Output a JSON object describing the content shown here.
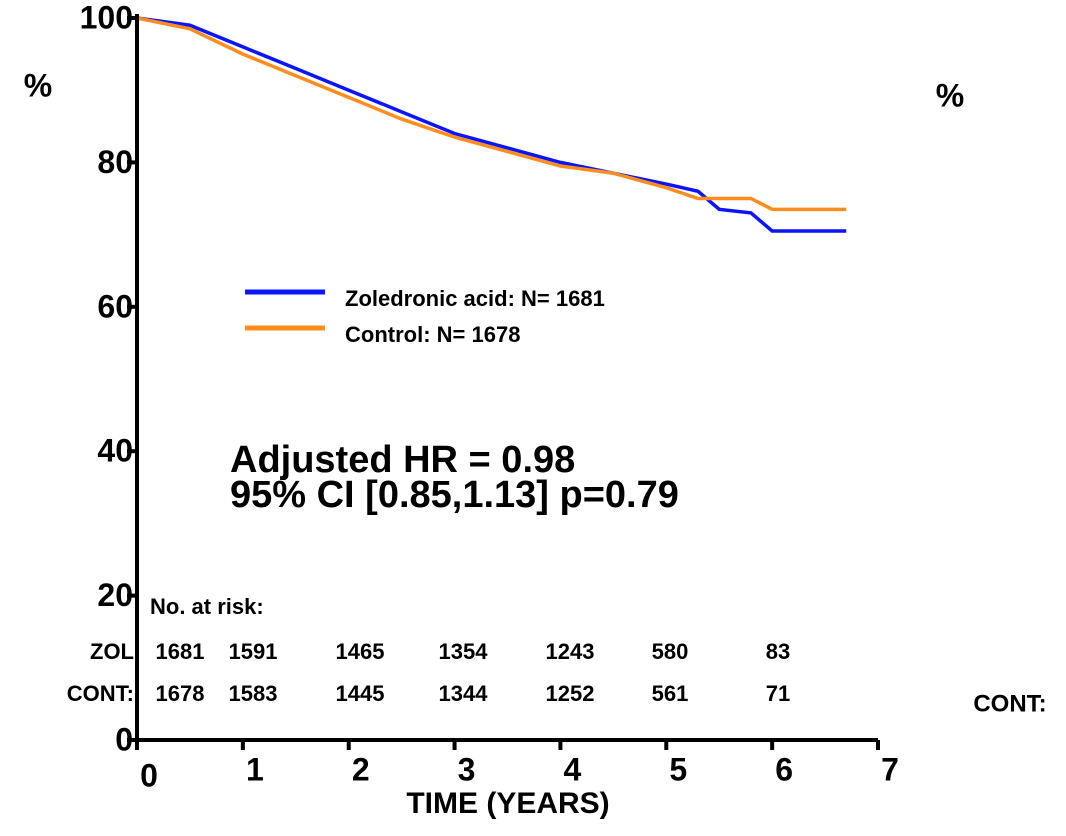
{
  "chart_data": {
    "type": "line",
    "xlabel": "TIME (YEARS)",
    "ylabel": "%",
    "y2label": "%",
    "xlim": [
      0,
      7
    ],
    "ylim": [
      0,
      100
    ],
    "xticks": [
      0,
      1,
      2,
      3,
      4,
      5,
      6,
      7
    ],
    "yticks": [
      0,
      20,
      40,
      60,
      80,
      100
    ],
    "series": [
      {
        "name": "Zoledronic acid:  N= 1681",
        "color": "#0a14ff",
        "x": [
          0,
          0.5,
          1,
          1.5,
          2,
          2.5,
          3,
          3.5,
          4,
          4.5,
          5,
          5.3,
          5.5,
          5.8,
          6,
          6.7
        ],
        "values": [
          100,
          99,
          96,
          93,
          90,
          87,
          84,
          82,
          80,
          78.5,
          77,
          76,
          73.5,
          73,
          70.5,
          70.5
        ]
      },
      {
        "name": "Control:  N= 1678",
        "color": "#ff8c1e",
        "x": [
          0,
          0.5,
          1,
          1.5,
          2,
          2.5,
          3,
          3.5,
          4,
          4.5,
          5,
          5.3,
          5.8,
          6,
          6.7
        ],
        "values": [
          100,
          98.5,
          95,
          92,
          89,
          86,
          83.5,
          81.5,
          79.5,
          78.5,
          76.5,
          75,
          75,
          73.5,
          73.5
        ]
      }
    ],
    "annotations": [
      "Adjusted HR = 0.98",
      "95% CI [0.85,1.13] p=0.79",
      "CONT:"
    ],
    "risk_table": {
      "title": "No. at risk:",
      "rows": [
        {
          "label": "ZOL",
          "values": [
            1681,
            1591,
            1465,
            1354,
            1243,
            580,
            83
          ]
        },
        {
          "label": "CONT:",
          "values": [
            1678,
            1583,
            1445,
            1344,
            1252,
            561,
            71
          ]
        }
      ]
    }
  }
}
